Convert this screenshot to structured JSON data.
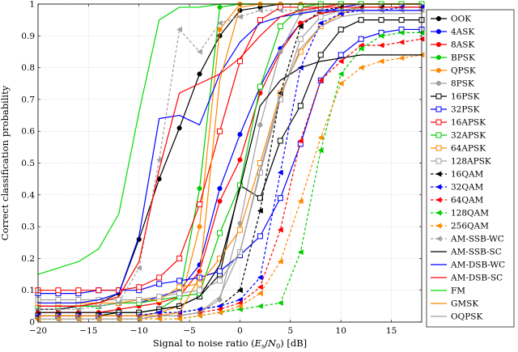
{
  "chart_data": {
    "type": "line",
    "xlabel": "Signal to noise ratio (E_s/N_0) [dB]",
    "xlabel_parts": {
      "prefix": "Signal to noise ratio (",
      "var": "E",
      "sub1": "s",
      "slash": "/",
      "var2": "N",
      "sub2": "0",
      "suffix": ") [dB]"
    },
    "ylabel": "Correct classification probability",
    "xlim": [
      -20,
      18
    ],
    "ylim": [
      0,
      1
    ],
    "xticks": [
      -20,
      -15,
      -10,
      -5,
      0,
      5,
      10,
      15
    ],
    "yticks": [
      0,
      0.1,
      0.2,
      0.3,
      0.4,
      0.5,
      0.6,
      0.7,
      0.8,
      0.9,
      1
    ],
    "ytick_labels": [
      "0",
      "0.1",
      "0.2",
      "0.3",
      "0.4",
      "0.5",
      "0.6",
      "0.7",
      "0.8",
      "0.9",
      "1"
    ],
    "grid": true,
    "legend_position": "right",
    "x": [
      -20,
      -18,
      -16,
      -14,
      -12,
      -10,
      -8,
      -6,
      -4,
      -2,
      0,
      2,
      4,
      6,
      8,
      10,
      12,
      14,
      16,
      18
    ],
    "series": [
      {
        "name": "OOK",
        "color": "#000000",
        "marker": "circle-filled",
        "dash": "solid",
        "values": [
          0.04,
          0.04,
          0.05,
          0.06,
          0.09,
          0.26,
          0.45,
          0.61,
          0.78,
          0.9,
          0.98,
          0.99,
          1.0,
          1.0,
          1.0,
          1.0,
          1.0,
          1.0,
          1.0,
          1.0
        ]
      },
      {
        "name": "4ASK",
        "color": "#0000ff",
        "marker": "circle-filled",
        "dash": "solid",
        "values": [
          0.05,
          0.05,
          0.05,
          0.05,
          0.06,
          0.06,
          0.08,
          0.1,
          0.18,
          0.42,
          0.59,
          0.74,
          0.86,
          0.94,
          0.97,
          0.99,
          1.0,
          1.0,
          1.0,
          1.0
        ]
      },
      {
        "name": "8ASK",
        "color": "#ff0000",
        "marker": "circle-filled",
        "dash": "solid",
        "values": [
          0.03,
          0.03,
          0.03,
          0.03,
          0.04,
          0.05,
          0.06,
          0.08,
          0.16,
          0.38,
          0.51,
          0.72,
          0.85,
          0.94,
          0.97,
          0.98,
          0.99,
          0.99,
          0.99,
          0.99
        ]
      },
      {
        "name": "BPSK",
        "color": "#00cc00",
        "marker": "circle-filled",
        "dash": "solid",
        "values": [
          0.02,
          0.02,
          0.02,
          0.02,
          0.03,
          0.03,
          0.04,
          0.08,
          0.42,
          0.99,
          1.0,
          1.0,
          1.0,
          1.0,
          1.0,
          1.0,
          1.0,
          1.0,
          1.0,
          1.0
        ]
      },
      {
        "name": "QPSK",
        "color": "#ff8800",
        "marker": "circle-filled",
        "dash": "solid",
        "values": [
          0.02,
          0.02,
          0.02,
          0.02,
          0.02,
          0.02,
          0.03,
          0.05,
          0.3,
          0.92,
          1.0,
          1.0,
          1.0,
          1.0,
          1.0,
          1.0,
          1.0,
          1.0,
          1.0,
          1.0
        ]
      },
      {
        "name": "8PSK",
        "color": "#a0a0a0",
        "marker": "circle-filled",
        "dash": "solid",
        "values": [
          0.01,
          0.01,
          0.01,
          0.01,
          0.01,
          0.01,
          0.02,
          0.02,
          0.03,
          0.07,
          0.31,
          0.62,
          0.85,
          0.97,
          0.99,
          1.0,
          1.0,
          1.0,
          1.0,
          1.0
        ]
      },
      {
        "name": "16PSK",
        "color": "#000000",
        "marker": "square-open",
        "dash": "solid",
        "values": [
          0.02,
          0.02,
          0.02,
          0.02,
          0.03,
          0.03,
          0.04,
          0.05,
          0.08,
          0.15,
          0.43,
          0.39,
          0.57,
          0.68,
          0.84,
          0.92,
          0.95,
          0.95,
          0.95,
          0.95
        ]
      },
      {
        "name": "32PSK",
        "color": "#0000ff",
        "marker": "square-open",
        "dash": "solid",
        "values": [
          0.09,
          0.09,
          0.09,
          0.1,
          0.1,
          0.1,
          0.12,
          0.13,
          0.14,
          0.16,
          0.21,
          0.27,
          0.39,
          0.56,
          0.76,
          0.84,
          0.89,
          0.91,
          0.92,
          0.92
        ]
      },
      {
        "name": "16APSK",
        "color": "#ff0000",
        "marker": "square-open",
        "dash": "solid",
        "values": [
          0.1,
          0.1,
          0.1,
          0.1,
          0.1,
          0.11,
          0.14,
          0.2,
          0.37,
          0.6,
          0.82,
          0.95,
          0.99,
          0.99,
          0.99,
          1.0,
          1.0,
          1.0,
          1.0,
          1.0
        ]
      },
      {
        "name": "32APSK",
        "color": "#00cc00",
        "marker": "square-open",
        "dash": "solid",
        "values": [
          0.05,
          0.05,
          0.05,
          0.05,
          0.06,
          0.06,
          0.07,
          0.08,
          0.09,
          0.28,
          0.43,
          0.74,
          0.93,
          0.99,
          1.0,
          1.0,
          1.0,
          1.0,
          1.0,
          1.0
        ]
      },
      {
        "name": "64APSK",
        "color": "#ff8800",
        "marker": "square-open",
        "dash": "solid",
        "values": [
          0.06,
          0.06,
          0.06,
          0.06,
          0.06,
          0.07,
          0.07,
          0.11,
          0.12,
          0.2,
          0.29,
          0.5,
          0.72,
          0.85,
          0.93,
          0.97,
          0.99,
          0.99,
          0.99,
          0.99
        ]
      },
      {
        "name": "128APSK",
        "color": "#a0a0a0",
        "marker": "square-open",
        "dash": "solid",
        "values": [
          0.07,
          0.07,
          0.07,
          0.07,
          0.07,
          0.07,
          0.08,
          0.09,
          0.1,
          0.13,
          0.22,
          0.47,
          0.7,
          0.89,
          0.96,
          0.98,
          0.99,
          0.99,
          0.99,
          0.99
        ]
      },
      {
        "name": "16QAM",
        "color": "#000000",
        "marker": "arrow",
        "dash": "dashed",
        "values": [
          0.02,
          0.02,
          0.02,
          0.02,
          0.02,
          0.02,
          0.03,
          0.03,
          0.04,
          0.05,
          0.1,
          0.35,
          0.72,
          0.93,
          0.98,
          0.99,
          0.99,
          0.99,
          0.99,
          0.99
        ]
      },
      {
        "name": "32QAM",
        "color": "#0000ff",
        "marker": "arrow",
        "dash": "dashed",
        "values": [
          0.02,
          0.02,
          0.02,
          0.02,
          0.02,
          0.02,
          0.03,
          0.03,
          0.04,
          0.05,
          0.07,
          0.14,
          0.47,
          0.8,
          0.94,
          0.97,
          0.98,
          0.98,
          0.99,
          0.99
        ]
      },
      {
        "name": "64QAM",
        "color": "#ff0000",
        "marker": "arrow",
        "dash": "dashed",
        "values": [
          0.01,
          0.01,
          0.01,
          0.01,
          0.01,
          0.01,
          0.02,
          0.02,
          0.03,
          0.04,
          0.06,
          0.11,
          0.29,
          0.57,
          0.76,
          0.82,
          0.87,
          0.87,
          0.88,
          0.89
        ]
      },
      {
        "name": "128QAM",
        "color": "#00cc00",
        "marker": "arrow",
        "dash": "dashed",
        "values": [
          0.01,
          0.01,
          0.01,
          0.01,
          0.01,
          0.01,
          0.01,
          0.01,
          0.02,
          0.03,
          0.04,
          0.05,
          0.06,
          0.22,
          0.54,
          0.78,
          0.86,
          0.9,
          0.91,
          0.91
        ]
      },
      {
        "name": "256QAM",
        "color": "#ff8800",
        "marker": "arrow",
        "dash": "dashed",
        "values": [
          0.01,
          0.01,
          0.01,
          0.01,
          0.01,
          0.01,
          0.01,
          0.01,
          0.02,
          0.03,
          0.05,
          0.09,
          0.19,
          0.38,
          0.58,
          0.75,
          0.8,
          0.82,
          0.83,
          0.84
        ]
      },
      {
        "name": "AM-SSB-WC",
        "color": "#a0a0a0",
        "marker": "arrow",
        "dash": "dashed",
        "values": [
          0.04,
          0.04,
          0.04,
          0.05,
          0.06,
          0.17,
          0.51,
          0.92,
          0.85,
          0.94,
          0.96,
          0.98,
          0.98,
          0.98,
          0.98,
          0.98,
          0.98,
          0.98,
          0.98,
          0.98
        ]
      },
      {
        "name": "AM-SSB-SC",
        "color": "#000000",
        "marker": "none",
        "dash": "solid",
        "values": [
          0.03,
          0.03,
          0.03,
          0.03,
          0.03,
          0.03,
          0.04,
          0.05,
          0.08,
          0.18,
          0.42,
          0.68,
          0.76,
          0.8,
          0.82,
          0.83,
          0.84,
          0.84,
          0.84,
          0.84
        ]
      },
      {
        "name": "AM-DSB-WC",
        "color": "#0000ff",
        "marker": "none",
        "dash": "solid",
        "values": [
          0.06,
          0.06,
          0.06,
          0.07,
          0.09,
          0.27,
          0.64,
          0.65,
          0.62,
          0.78,
          0.88,
          0.94,
          0.96,
          0.97,
          0.98,
          0.98,
          0.98,
          0.98,
          0.98,
          0.98
        ]
      },
      {
        "name": "AM-DSB-SC",
        "color": "#ff0000",
        "marker": "none",
        "dash": "solid",
        "values": [
          0.05,
          0.05,
          0.05,
          0.06,
          0.08,
          0.19,
          0.48,
          0.72,
          0.75,
          0.78,
          0.83,
          0.9,
          0.96,
          0.98,
          0.99,
          0.99,
          0.99,
          0.99,
          0.99,
          0.99
        ]
      },
      {
        "name": "FM",
        "color": "#00dd00",
        "marker": "none",
        "dash": "solid",
        "values": [
          0.15,
          0.17,
          0.19,
          0.23,
          0.34,
          0.66,
          0.95,
          0.99,
          0.99,
          1.0,
          1.0,
          1.0,
          1.0,
          1.0,
          1.0,
          1.0,
          1.0,
          1.0,
          1.0,
          1.0
        ]
      },
      {
        "name": "GMSK",
        "color": "#ff8800",
        "marker": "none",
        "dash": "solid",
        "values": [
          0.02,
          0.02,
          0.02,
          0.02,
          0.02,
          0.02,
          0.02,
          0.03,
          0.14,
          0.76,
          0.99,
          1.0,
          1.0,
          1.0,
          1.0,
          1.0,
          1.0,
          1.0,
          1.0,
          1.0
        ]
      },
      {
        "name": "OQPSK",
        "color": "#a0a0a0",
        "marker": "none",
        "dash": "solid",
        "values": [
          0.01,
          0.01,
          0.01,
          0.01,
          0.01,
          0.01,
          0.02,
          0.02,
          0.03,
          0.08,
          0.22,
          0.48,
          0.71,
          0.86,
          0.93,
          0.96,
          0.97,
          0.97,
          0.97,
          0.97
        ]
      }
    ]
  }
}
